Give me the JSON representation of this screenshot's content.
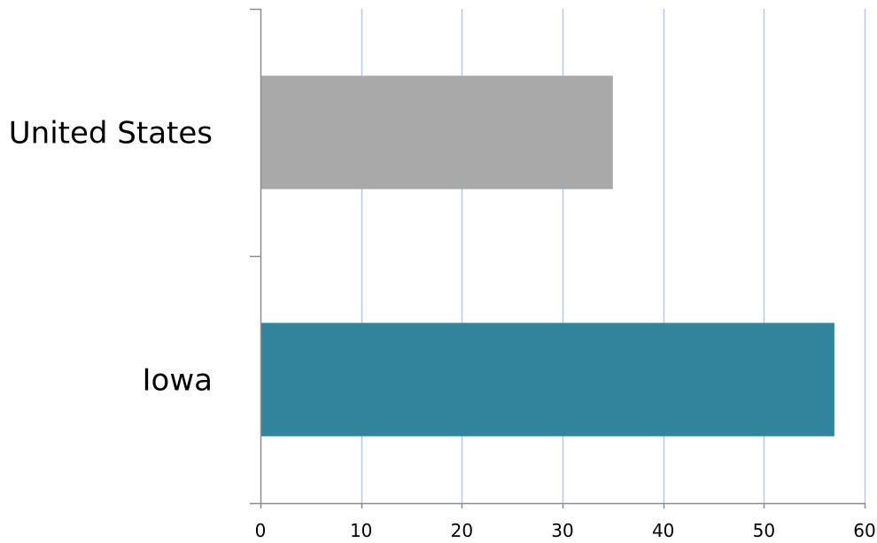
{
  "chart_data": {
    "type": "bar",
    "orientation": "horizontal",
    "title": "",
    "xlabel": "",
    "ylabel": "",
    "categories": [
      "United States",
      "Iowa"
    ],
    "values": [
      35,
      57
    ],
    "bar_colors": [
      "#a9a9a9",
      "#31849b"
    ],
    "xlim": [
      0,
      60
    ],
    "x_ticks": [
      "0",
      "10",
      "20",
      "30",
      "40",
      "50",
      "60"
    ],
    "grid": true,
    "grid_color": "#b9c9e6",
    "axis_color": "#8c8c8c",
    "legend": "none"
  }
}
